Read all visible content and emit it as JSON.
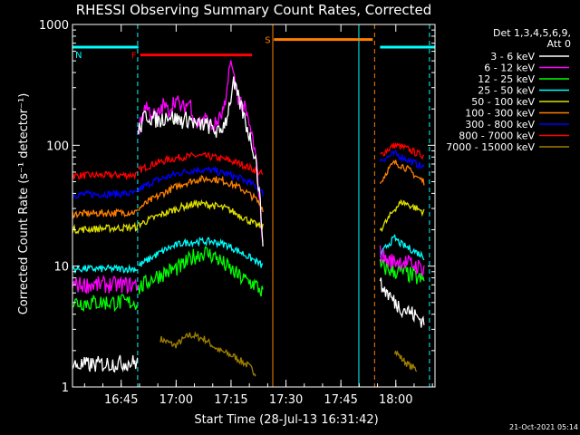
{
  "chart_data": {
    "type": "line",
    "title": "RHESSI Observing Summary Count Rates, Corrected",
    "xlabel": "Start Time (28-Jul-13 16:31:42)",
    "ylabel": "Corrected Count Rate (s⁻¹ detector⁻¹)",
    "yscale": "log",
    "ylim": [
      1,
      1000
    ],
    "xlim_min_from_start": [
      0,
      99
    ],
    "x_ticks": [
      "16:45",
      "17:00",
      "17:15",
      "17:30",
      "17:45",
      "18:00"
    ],
    "x_ticks_min": [
      13.3,
      28.3,
      43.3,
      58.3,
      73.3,
      88.3
    ],
    "y_ticks": [
      "1",
      "10",
      "100",
      "1000"
    ],
    "y_tick_values": [
      1,
      10,
      100,
      1000
    ],
    "legend_header": [
      "Det 1,3,4,5,6,9,",
      "Att 0"
    ],
    "legend_position": "right",
    "footer_date": "21-Oct-2021 05:14",
    "flags": [
      {
        "label": "N",
        "color": "#00ffff",
        "x0": 0,
        "x1": 18,
        "y": 650
      },
      {
        "label": "F",
        "color": "#ff0000",
        "x0": 18.5,
        "x1": 49,
        "y": 560
      },
      {
        "label": "S",
        "color": "#ff8000",
        "x0": 55,
        "x1": 82,
        "y": 750
      },
      {
        "label": "",
        "color": "#00ffff",
        "x0": 84,
        "x1": 99,
        "y": 650
      }
    ],
    "vlines": [
      {
        "x": 17.8,
        "color": "#00ffff",
        "dashed": true
      },
      {
        "x": 54.7,
        "color": "#ff8000",
        "dashed": false
      },
      {
        "x": 78.2,
        "color": "#00ffff",
        "dashed": false
      },
      {
        "x": 82.5,
        "color": "#ff8000",
        "dashed": true
      },
      {
        "x": 97.5,
        "color": "#00ffff",
        "dashed": true
      }
    ],
    "series": [
      {
        "name": "3 - 6 keV",
        "color": "#ffffff",
        "seg1": [
          [
            0,
            1.5
          ],
          [
            17.8,
            1.6
          ]
        ],
        "seg2": [
          [
            18,
            130
          ],
          [
            20,
            180
          ],
          [
            22,
            165
          ],
          [
            24,
            160
          ],
          [
            26,
            180
          ],
          [
            28,
            165
          ],
          [
            30,
            160
          ],
          [
            32,
            165
          ],
          [
            34,
            145
          ],
          [
            36,
            150
          ],
          [
            38,
            140
          ],
          [
            40,
            125
          ],
          [
            42,
            165
          ],
          [
            44,
            320
          ],
          [
            46,
            210
          ],
          [
            48,
            130
          ],
          [
            50,
            80
          ],
          [
            51,
            40
          ],
          [
            52,
            17
          ]
        ],
        "seg3": [
          [
            84,
            7
          ],
          [
            86,
            6
          ],
          [
            88,
            5
          ],
          [
            90,
            4.5
          ],
          [
            92,
            4.2
          ],
          [
            94,
            3.8
          ],
          [
            96,
            3.5
          ]
        ]
      },
      {
        "name": "6 - 12 keV",
        "color": "#ff00ff",
        "seg1": [
          [
            0,
            7
          ],
          [
            17.8,
            7
          ]
        ],
        "seg2": [
          [
            18,
            130
          ],
          [
            20,
            220
          ],
          [
            21,
            190
          ],
          [
            23,
            170
          ],
          [
            25,
            220
          ],
          [
            26,
            190
          ],
          [
            28,
            240
          ],
          [
            30,
            200
          ],
          [
            32,
            230
          ],
          [
            34,
            150
          ],
          [
            36,
            170
          ],
          [
            38,
            140
          ],
          [
            40,
            160
          ],
          [
            42,
            220
          ],
          [
            43,
            530
          ],
          [
            45,
            260
          ],
          [
            47,
            200
          ],
          [
            49,
            120
          ],
          [
            50,
            80
          ],
          [
            51,
            40
          ],
          [
            52,
            15
          ]
        ],
        "seg3": [
          [
            84,
            13
          ],
          [
            86,
            11
          ],
          [
            88,
            11
          ],
          [
            90,
            11
          ],
          [
            92,
            10.5
          ],
          [
            94,
            10
          ],
          [
            96,
            9.5
          ]
        ]
      },
      {
        "name": "12 - 25 keV",
        "color": "#00ff00",
        "seg1": [
          [
            0,
            5
          ],
          [
            17.8,
            5
          ]
        ],
        "seg2": [
          [
            18,
            6.5
          ],
          [
            22,
            8
          ],
          [
            26,
            9
          ],
          [
            30,
            10
          ],
          [
            33,
            12
          ],
          [
            36,
            13
          ],
          [
            39,
            12
          ],
          [
            42,
            10
          ],
          [
            46,
            8
          ],
          [
            50,
            7
          ],
          [
            52,
            6
          ]
        ],
        "seg3": [
          [
            84,
            10
          ],
          [
            86,
            9.5
          ],
          [
            88,
            9
          ],
          [
            90,
            9
          ],
          [
            92,
            8.5
          ],
          [
            94,
            8
          ],
          [
            96,
            7.5
          ]
        ]
      },
      {
        "name": "25 - 50 keV",
        "color": "#00ffff",
        "seg1": [
          [
            0,
            9.5
          ],
          [
            17.8,
            9.5
          ]
        ],
        "seg2": [
          [
            18,
            10
          ],
          [
            22,
            12
          ],
          [
            26,
            14
          ],
          [
            30,
            15.5
          ],
          [
            34,
            16
          ],
          [
            38,
            16
          ],
          [
            42,
            15
          ],
          [
            46,
            13
          ],
          [
            50,
            11
          ],
          [
            52,
            10
          ]
        ],
        "seg3": [
          [
            84,
            12
          ],
          [
            86,
            15
          ],
          [
            88,
            17
          ],
          [
            90,
            15
          ],
          [
            92,
            14
          ],
          [
            94,
            13
          ],
          [
            96,
            12
          ]
        ]
      },
      {
        "name": "50 - 100 keV",
        "color": "#e0e000",
        "seg1": [
          [
            0,
            20
          ],
          [
            17.8,
            21
          ]
        ],
        "seg2": [
          [
            18,
            22
          ],
          [
            22,
            25
          ],
          [
            26,
            28
          ],
          [
            30,
            31
          ],
          [
            34,
            33
          ],
          [
            38,
            32
          ],
          [
            42,
            30
          ],
          [
            46,
            26
          ],
          [
            50,
            22
          ],
          [
            52,
            21
          ]
        ],
        "seg3": [
          [
            84,
            20
          ],
          [
            86,
            24
          ],
          [
            88,
            30
          ],
          [
            90,
            34
          ],
          [
            92,
            32
          ],
          [
            94,
            30
          ],
          [
            96,
            28
          ]
        ]
      },
      {
        "name": "100 - 300 keV",
        "color": "#ff8000",
        "seg1": [
          [
            0,
            27
          ],
          [
            17.8,
            28
          ]
        ],
        "seg2": [
          [
            18,
            30
          ],
          [
            22,
            36
          ],
          [
            26,
            42
          ],
          [
            30,
            48
          ],
          [
            34,
            52
          ],
          [
            38,
            53
          ],
          [
            42,
            50
          ],
          [
            46,
            44
          ],
          [
            50,
            36
          ],
          [
            52,
            30
          ]
        ],
        "seg3": [
          [
            84,
            48
          ],
          [
            86,
            62
          ],
          [
            88,
            72
          ],
          [
            90,
            68
          ],
          [
            92,
            62
          ],
          [
            94,
            55
          ],
          [
            96,
            50
          ]
        ]
      },
      {
        "name": "300 - 800 keV",
        "color": "#0000ff",
        "seg1": [
          [
            0,
            39
          ],
          [
            17.8,
            40
          ]
        ],
        "seg2": [
          [
            18,
            43
          ],
          [
            22,
            50
          ],
          [
            26,
            55
          ],
          [
            30,
            60
          ],
          [
            34,
            63
          ],
          [
            38,
            62
          ],
          [
            42,
            58
          ],
          [
            46,
            53
          ],
          [
            50,
            46
          ],
          [
            52,
            40
          ]
        ],
        "seg3": [
          [
            84,
            75
          ],
          [
            86,
            80
          ],
          [
            88,
            85
          ],
          [
            90,
            80
          ],
          [
            92,
            75
          ],
          [
            94,
            70
          ],
          [
            96,
            65
          ]
        ]
      },
      {
        "name": "800 - 7000 keV",
        "color": "#ff0000",
        "seg1": [
          [
            0,
            56
          ],
          [
            17.8,
            57
          ]
        ],
        "seg2": [
          [
            18,
            62
          ],
          [
            22,
            70
          ],
          [
            26,
            76
          ],
          [
            30,
            80
          ],
          [
            34,
            82
          ],
          [
            38,
            80
          ],
          [
            42,
            76
          ],
          [
            46,
            70
          ],
          [
            50,
            62
          ],
          [
            52,
            57
          ]
        ],
        "seg3": [
          [
            84,
            82
          ],
          [
            86,
            92
          ],
          [
            88,
            100
          ],
          [
            90,
            97
          ],
          [
            92,
            92
          ],
          [
            94,
            86
          ],
          [
            96,
            82
          ]
        ]
      },
      {
        "name": "7000 - 15000 keV",
        "color": "#a08000",
        "seg1": [],
        "seg2": [
          [
            24,
            2.5
          ],
          [
            28,
            2.2
          ],
          [
            32,
            2.7
          ],
          [
            36,
            2.5
          ],
          [
            40,
            2
          ],
          [
            44,
            1.8
          ],
          [
            48,
            1.5
          ],
          [
            50,
            1.3
          ]
        ],
        "seg3": [
          [
            88,
            2
          ],
          [
            90,
            1.7
          ],
          [
            92,
            1.5
          ],
          [
            94,
            1.4
          ]
        ]
      }
    ]
  }
}
